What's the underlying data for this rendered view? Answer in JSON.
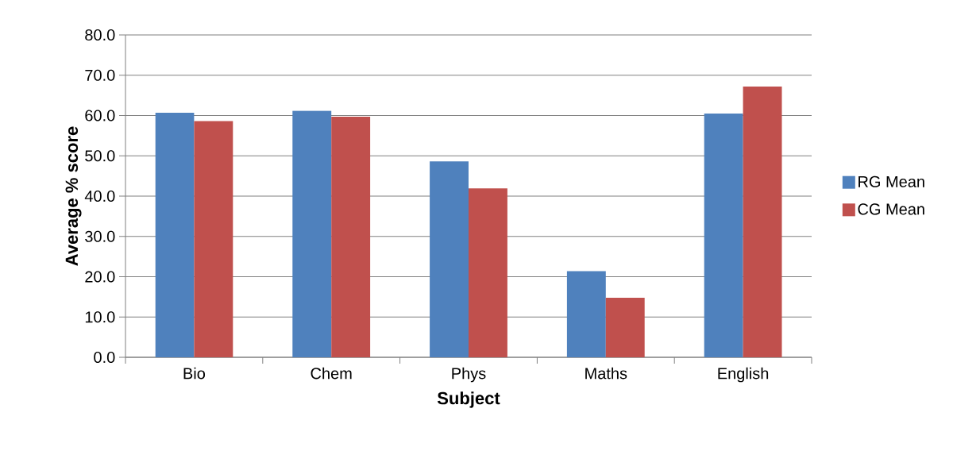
{
  "chart_data": {
    "type": "bar",
    "xlabel": "Subject",
    "ylabel": "Average % score",
    "categories": [
      "Bio",
      "Chem",
      "Phys",
      "Maths",
      "English"
    ],
    "series": [
      {
        "name": "RG Mean",
        "color": "#4f81bd",
        "values": [
          60.7,
          61.2,
          48.6,
          21.4,
          60.5
        ]
      },
      {
        "name": "CG Mean",
        "color": "#c0504d",
        "values": [
          58.6,
          59.7,
          41.9,
          14.8,
          67.2
        ]
      }
    ],
    "ylim": [
      0,
      80
    ],
    "yticks": [
      {
        "value": 0,
        "label": "0.0"
      },
      {
        "value": 10,
        "label": "10.0"
      },
      {
        "value": 20,
        "label": "20.0"
      },
      {
        "value": 30,
        "label": "30.0"
      },
      {
        "value": 40,
        "label": "40.0"
      },
      {
        "value": 50,
        "label": "50.0"
      },
      {
        "value": 60,
        "label": "60.0"
      },
      {
        "value": 70,
        "label": "70.0"
      },
      {
        "value": 80,
        "label": "80.0"
      }
    ],
    "grid": "y",
    "legend": "right"
  }
}
